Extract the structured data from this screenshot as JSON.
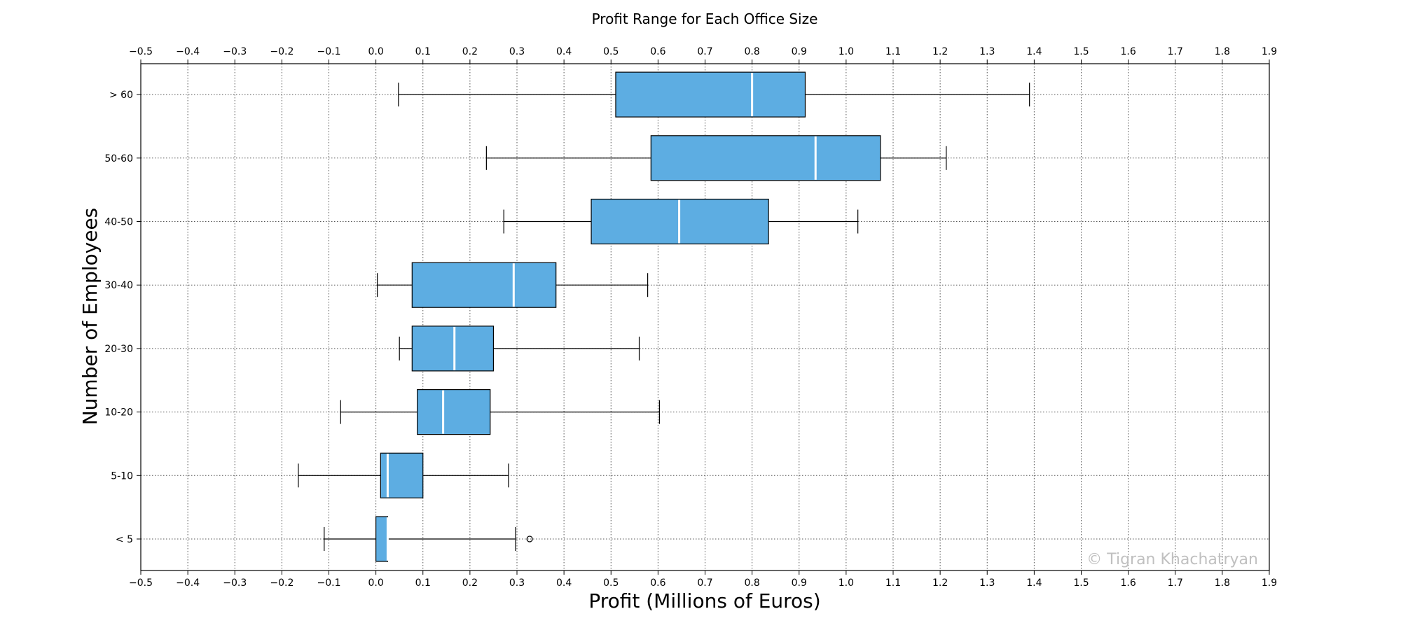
{
  "chart_data": {
    "type": "boxplot",
    "orientation": "horizontal",
    "title": "Profit Range for Each Office Size",
    "xlabel": "Profit (Millions of Euros)",
    "ylabel": "Number of Employees",
    "xlim": [
      -0.5,
      1.9
    ],
    "xticks": [
      "−0.5",
      "−0.4",
      "−0.3",
      "−0.2",
      "−0.1",
      "0.0",
      "0.1",
      "0.2",
      "0.3",
      "0.4",
      "0.5",
      "0.6",
      "0.7",
      "0.8",
      "0.9",
      "1.0",
      "1.1",
      "1.2",
      "1.3",
      "1.4",
      "1.5",
      "1.6",
      "1.7",
      "1.8",
      "1.9"
    ],
    "xtick_values": [
      -0.5,
      -0.4,
      -0.3,
      -0.2,
      -0.1,
      0.0,
      0.1,
      0.2,
      0.3,
      0.4,
      0.5,
      0.6,
      0.7,
      0.8,
      0.9,
      1.0,
      1.1,
      1.2,
      1.3,
      1.4,
      1.5,
      1.6,
      1.7,
      1.8,
      1.9
    ],
    "ticks_top_and_bottom": true,
    "grid": true,
    "box_color": "#5dade2",
    "median_color": "#ffffff",
    "categories": [
      {
        "label": "< 5",
        "whisker_low": -0.11,
        "q1": 0.0,
        "median": 0.025,
        "q3": 0.025,
        "whisker_high": 0.297,
        "outliers": [
          0.327
        ]
      },
      {
        "label": "5-10",
        "whisker_low": -0.165,
        "q1": 0.01,
        "median": 0.025,
        "q3": 0.1,
        "whisker_high": 0.282,
        "outliers": []
      },
      {
        "label": "10-20",
        "whisker_low": -0.075,
        "q1": 0.088,
        "median": 0.143,
        "q3": 0.243,
        "whisker_high": 0.603,
        "outliers": []
      },
      {
        "label": "20-30",
        "whisker_low": 0.05,
        "q1": 0.077,
        "median": 0.167,
        "q3": 0.25,
        "whisker_high": 0.56,
        "outliers": []
      },
      {
        "label": "30-40",
        "whisker_low": 0.003,
        "q1": 0.077,
        "median": 0.293,
        "q3": 0.383,
        "whisker_high": 0.578,
        "outliers": []
      },
      {
        "label": "40-50",
        "whisker_low": 0.272,
        "q1": 0.458,
        "median": 0.645,
        "q3": 0.835,
        "whisker_high": 1.025,
        "outliers": []
      },
      {
        "label": "50-60",
        "whisker_low": 0.235,
        "q1": 0.585,
        "median": 0.935,
        "q3": 1.073,
        "whisker_high": 1.213,
        "outliers": []
      },
      {
        "label": "> 60",
        "whisker_low": 0.048,
        "q1": 0.51,
        "median": 0.8,
        "q3": 0.913,
        "whisker_high": 1.39,
        "outliers": []
      }
    ]
  },
  "watermark": "© Tigran Khachatryan"
}
